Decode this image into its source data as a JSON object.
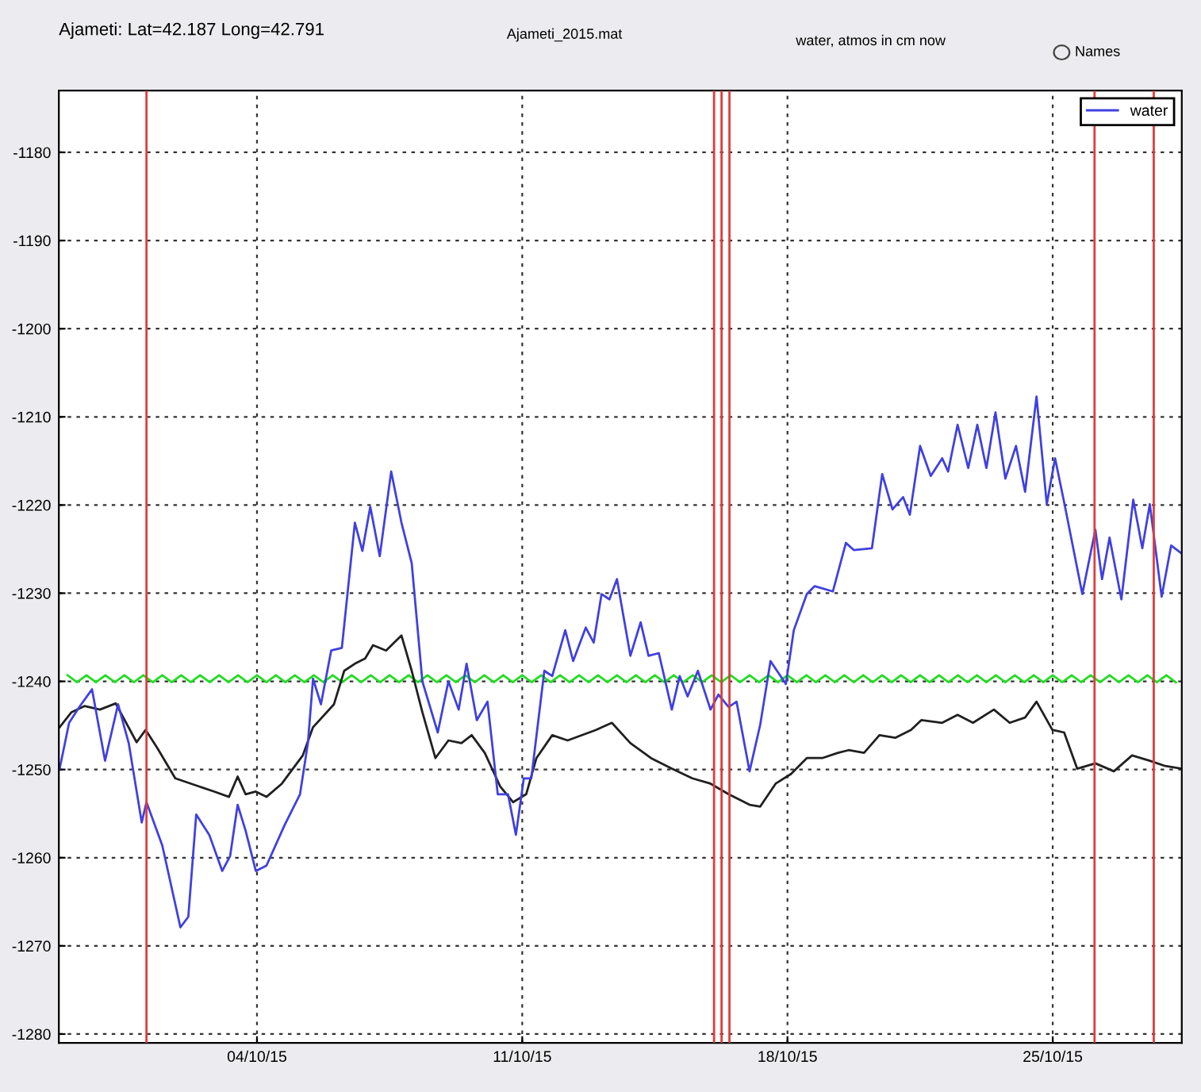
{
  "chart_data": {
    "type": "line",
    "title": "Ajameti: Lat=42.187 Long=42.791",
    "subtitle": "Ajameti_2015.mat",
    "annotations": [
      "water, atmos in cm now",
      "Names"
    ],
    "xlim": [
      "2015-09-28T18:30",
      "2015-10-28T09:45"
    ],
    "xticks": [
      {
        "value": "2015-10-04",
        "label": "04/10/15"
      },
      {
        "value": "2015-10-11",
        "label": "11/10/15"
      },
      {
        "value": "2015-10-18",
        "label": "18/10/15"
      },
      {
        "value": "2015-10-25",
        "label": "25/10/15"
      }
    ],
    "ylim": [
      -1281,
      -1173
    ],
    "yticks": [
      -1280,
      -1270,
      -1260,
      -1250,
      -1240,
      -1230,
      -1220,
      -1210,
      -1200,
      -1190,
      -1180
    ],
    "grid": true,
    "legend": "top right",
    "line_style": "solid",
    "marker": "none",
    "ref_lines": [
      {
        "axis": "x",
        "value": "2015-10-01T02:00",
        "label": null,
        "color": "#e03c3c"
      },
      {
        "axis": "x",
        "value": "2015-10-16T01:30",
        "label": null,
        "color": "#e03c3c"
      },
      {
        "axis": "x",
        "value": "2015-10-16T06:15",
        "label": null,
        "color": "#e03c3c"
      },
      {
        "axis": "x",
        "value": "2015-10-16T11:15",
        "label": null,
        "color": "#e03c3c"
      },
      {
        "axis": "x",
        "value": "2015-10-26T02:30",
        "label": null,
        "color": "#e03c3c"
      },
      {
        "axis": "x",
        "value": "2015-10-27T16:00",
        "label": null,
        "color": "#e03c3c"
      }
    ],
    "series": [
      {
        "color": "#22dd22",
        "x": [
          "2015-09-29T00:00",
          "2015-09-29T06:00",
          "2015-09-29T12:00",
          "2015-09-29T18:00",
          "2015-09-30T00:00",
          "2015-09-30T06:00",
          "2015-09-30T12:00",
          "2015-09-30T18:00",
          "2015-10-01T00:00",
          "2015-10-01T06:00",
          "2015-10-01T12:00",
          "2015-10-01T18:00",
          "2015-10-02T00:00",
          "2015-10-02T06:00",
          "2015-10-02T12:00",
          "2015-10-02T18:00",
          "2015-10-03T00:00",
          "2015-10-03T06:00",
          "2015-10-03T12:00",
          "2015-10-03T18:00",
          "2015-10-04T00:00",
          "2015-10-04T06:00",
          "2015-10-04T12:00",
          "2015-10-04T18:00",
          "2015-10-05T00:00",
          "2015-10-05T06:00",
          "2015-10-05T12:00",
          "2015-10-05T18:00",
          "2015-10-06T00:00",
          "2015-10-06T06:00",
          "2015-10-06T12:00",
          "2015-10-06T18:00",
          "2015-10-07T00:00",
          "2015-10-07T06:00",
          "2015-10-07T12:00",
          "2015-10-07T18:00",
          "2015-10-08T00:00",
          "2015-10-08T06:00",
          "2015-10-08T12:00",
          "2015-10-08T18:00",
          "2015-10-09T00:00",
          "2015-10-09T06:00",
          "2015-10-09T12:00",
          "2015-10-09T18:00",
          "2015-10-10T00:00",
          "2015-10-10T06:00",
          "2015-10-10T12:00",
          "2015-10-10T18:00",
          "2015-10-11T00:00",
          "2015-10-11T06:00",
          "2015-10-11T12:00",
          "2015-10-11T18:00",
          "2015-10-12T00:00",
          "2015-10-12T06:00",
          "2015-10-12T12:00",
          "2015-10-12T18:00",
          "2015-10-13T00:00",
          "2015-10-13T06:00",
          "2015-10-13T12:00",
          "2015-10-13T18:00",
          "2015-10-14T00:00",
          "2015-10-14T06:00",
          "2015-10-14T12:00",
          "2015-10-14T18:00",
          "2015-10-15T00:00",
          "2015-10-15T06:00",
          "2015-10-15T12:00",
          "2015-10-15T18:00",
          "2015-10-16T00:00",
          "2015-10-16T06:00",
          "2015-10-16T12:00",
          "2015-10-16T18:00",
          "2015-10-17T00:00",
          "2015-10-17T06:00",
          "2015-10-17T12:00",
          "2015-10-17T18:00",
          "2015-10-18T00:00",
          "2015-10-18T06:00",
          "2015-10-18T12:00",
          "2015-10-18T18:00",
          "2015-10-19T00:00",
          "2015-10-19T06:00",
          "2015-10-19T12:00",
          "2015-10-19T18:00",
          "2015-10-20T00:00",
          "2015-10-20T06:00",
          "2015-10-20T12:00",
          "2015-10-20T18:00",
          "2015-10-21T00:00",
          "2015-10-21T06:00",
          "2015-10-21T12:00",
          "2015-10-21T18:00",
          "2015-10-22T00:00",
          "2015-10-22T06:00",
          "2015-10-22T12:00",
          "2015-10-22T18:00",
          "2015-10-23T00:00",
          "2015-10-23T06:00",
          "2015-10-23T12:00",
          "2015-10-23T18:00",
          "2015-10-24T00:00",
          "2015-10-24T06:00",
          "2015-10-24T12:00",
          "2015-10-24T18:00",
          "2015-10-25T00:00",
          "2015-10-25T06:00",
          "2015-10-25T12:00",
          "2015-10-25T18:00",
          "2015-10-26T00:00",
          "2015-10-26T06:00",
          "2015-10-26T12:00",
          "2015-10-26T18:00",
          "2015-10-27T00:00",
          "2015-10-27T06:00",
          "2015-10-27T12:00",
          "2015-10-27T18:00",
          "2015-10-28T00:00",
          "2015-10-28T06:00"
        ],
        "values": [
          -1239.3,
          -1240.1,
          -1239.3,
          -1240.1,
          -1239.3,
          -1240.1,
          -1239.3,
          -1240.1,
          -1239.3,
          -1240.1,
          -1239.3,
          -1240.1,
          -1239.3,
          -1240.1,
          -1239.3,
          -1240.1,
          -1239.3,
          -1240.1,
          -1239.3,
          -1240.1,
          -1239.3,
          -1240.1,
          -1239.3,
          -1240.1,
          -1239.3,
          -1240.1,
          -1239.3,
          -1240.1,
          -1239.3,
          -1240.1,
          -1239.3,
          -1240.1,
          -1239.3,
          -1240.1,
          -1239.3,
          -1240.1,
          -1239.3,
          -1240.1,
          -1239.3,
          -1240.1,
          -1239.3,
          -1240.1,
          -1239.3,
          -1240.1,
          -1239.3,
          -1240.1,
          -1239.3,
          -1240.1,
          -1239.3,
          -1240.1,
          -1239.3,
          -1240.1,
          -1239.3,
          -1240.1,
          -1239.3,
          -1240.1,
          -1239.3,
          -1240.1,
          -1239.3,
          -1240.1,
          -1239.3,
          -1240.1,
          -1239.3,
          -1240.1,
          -1239.3,
          -1240.1,
          -1239.3,
          -1240.1,
          -1239.3,
          -1240.1,
          -1239.3,
          -1240.1,
          -1239.3,
          -1240.1,
          -1239.3,
          -1240.1,
          -1239.3,
          -1240.1,
          -1239.3,
          -1240.1,
          -1239.3,
          -1240.1,
          -1239.3,
          -1240.1,
          -1239.3,
          -1240.1,
          -1239.3,
          -1240.1,
          -1239.3,
          -1240.1,
          -1239.3,
          -1240.1,
          -1239.3,
          -1240.1,
          -1239.3,
          -1240.1,
          -1239.3,
          -1240.1,
          -1239.3,
          -1240.1,
          -1239.3,
          -1240.1,
          -1239.3,
          -1240.1,
          -1239.3,
          -1240.1,
          -1239.3,
          -1240.1,
          -1239.3,
          -1240.1,
          -1239.3,
          -1240.1,
          -1239.3,
          -1240.1,
          -1239.3,
          -1240.1,
          -1239.3,
          -1240.1
        ]
      },
      {
        "color": "#202020",
        "x": [
          "2015-09-28T19:00",
          "2015-09-29T02:30",
          "2015-09-29T10:45",
          "2015-09-29T20:30",
          "2015-09-30T06:30",
          "2015-09-30T19:45",
          "2015-10-01T01:30",
          "2015-10-01T09:00",
          "2015-10-01T20:15",
          "2015-10-02T11:00",
          "2015-10-02T21:00",
          "2015-10-03T06:15",
          "2015-10-03T11:45",
          "2015-10-03T16:45",
          "2015-10-03T23:15",
          "2015-10-04T06:00",
          "2015-10-04T15:45",
          "2015-10-05T05:00",
          "2015-10-05T11:30",
          "2015-10-06T00:45",
          "2015-10-06T07:15",
          "2015-10-06T14:00",
          "2015-10-06T20:30",
          "2015-10-07T01:30",
          "2015-10-07T09:45",
          "2015-10-07T19:30",
          "2015-10-08T02:00",
          "2015-10-08T08:45",
          "2015-10-08T17:00",
          "2015-10-09T01:15",
          "2015-10-09T09:30",
          "2015-10-09T16:00",
          "2015-10-10T00:15",
          "2015-10-10T10:00",
          "2015-10-10T18:15",
          "2015-10-11T02:30",
          "2015-10-11T09:00",
          "2015-10-11T19:00",
          "2015-10-12T04:45",
          "2015-10-12T22:45",
          "2015-10-13T08:45",
          "2015-10-13T20:30",
          "2015-10-14T09:30",
          "2015-10-14T22:45",
          "2015-10-15T11:45",
          "2015-10-15T23:15",
          "2015-10-16T10:45",
          "2015-10-17T00:00",
          "2015-10-17T06:45",
          "2015-10-17T16:30",
          "2015-10-18T02:15",
          "2015-10-18T12:15",
          "2015-10-18T22:00",
          "2015-10-19T08:00",
          "2015-10-19T14:45",
          "2015-10-20T00:30",
          "2015-10-20T10:15",
          "2015-10-20T20:15",
          "2015-10-21T06:15",
          "2015-10-21T12:45",
          "2015-10-22T02:00",
          "2015-10-22T11:45",
          "2015-10-22T21:30",
          "2015-10-23T10:45",
          "2015-10-23T20:45",
          "2015-10-24T06:30",
          "2015-10-24T13:45",
          "2015-10-24T23:45",
          "2015-10-25T07:15",
          "2015-10-25T15:30",
          "2015-10-26T03:00",
          "2015-10-26T14:45",
          "2015-10-27T02:15",
          "2015-10-27T13:30",
          "2015-10-27T23:15",
          "2015-10-28T09:45"
        ],
        "values": [
          -1245.2,
          -1243.5,
          -1242.8,
          -1243.2,
          -1242.5,
          -1246.9,
          -1245.5,
          -1247.6,
          -1251,
          -1251.9,
          -1252.5,
          -1253.1,
          -1250.8,
          -1252.8,
          -1252.5,
          -1253.1,
          -1251.6,
          -1248.4,
          -1245.2,
          -1242.6,
          -1238.8,
          -1238,
          -1237.4,
          -1235.9,
          -1236.5,
          -1234.8,
          -1238.8,
          -1243.5,
          -1248.7,
          -1246.7,
          -1247,
          -1246.1,
          -1248.1,
          -1251.9,
          -1253.7,
          -1252.8,
          -1248.7,
          -1246.1,
          -1246.7,
          -1245.5,
          -1244.7,
          -1247,
          -1248.7,
          -1249.9,
          -1251,
          -1251.6,
          -1252.8,
          -1254,
          -1254.2,
          -1251.6,
          -1250.5,
          -1248.7,
          -1248.7,
          -1248.1,
          -1247.8,
          -1248.1,
          -1246.1,
          -1246.4,
          -1245.5,
          -1244.4,
          -1244.7,
          -1243.8,
          -1244.7,
          -1243.2,
          -1244.7,
          -1244.1,
          -1242.3,
          -1245.5,
          -1245.8,
          -1249.9,
          -1249.3,
          -1250.2,
          -1248.4,
          -1249,
          -1249.6,
          -1249.9
        ]
      },
      {
        "name": "water",
        "color": "#4040e0",
        "x": [
          "2015-09-28T19:00",
          "2015-09-29T01:00",
          "2015-09-29T07:30",
          "2015-09-29T15:30",
          "2015-09-29T23:45",
          "2015-09-30T08:00",
          "2015-09-30T14:45",
          "2015-09-30T23:00",
          "2015-10-01T02:00",
          "2015-10-01T12:00",
          "2015-10-01T23:30",
          "2015-10-02T04:30",
          "2015-10-02T09:30",
          "2015-10-02T17:45",
          "2015-10-03T02:00",
          "2015-10-03T07:00",
          "2015-10-03T11:45",
          "2015-10-03T16:45",
          "2015-10-03T23:15",
          "2015-10-04T06:00",
          "2015-10-04T17:30",
          "2015-10-05T03:15",
          "2015-10-05T08:15",
          "2015-10-05T11:30",
          "2015-10-05T16:30",
          "2015-10-05T23:00",
          "2015-10-06T05:45",
          "2015-10-06T14:00",
          "2015-10-06T18:45",
          "2015-10-06T23:45",
          "2015-10-07T05:45",
          "2015-10-07T13:00",
          "2015-10-07T19:30",
          "2015-10-08T02:00",
          "2015-10-08T08:45",
          "2015-10-08T18:30",
          "2015-10-09T01:15",
          "2015-10-09T07:45",
          "2015-10-09T12:45",
          "2015-10-09T19:15",
          "2015-10-10T02:00",
          "2015-10-10T08:30",
          "2015-10-10T15:00",
          "2015-10-10T20:00",
          "2015-10-11T01:00",
          "2015-10-11T05:45",
          "2015-10-11T14:00",
          "2015-10-11T19:00",
          "2015-10-12T03:15",
          "2015-10-12T08:15",
          "2015-10-12T16:15",
          "2015-10-12T21:15",
          "2015-10-13T02:15",
          "2015-10-13T07:15",
          "2015-10-13T12:00",
          "2015-10-13T20:30",
          "2015-10-14T03:00",
          "2015-10-14T08:00",
          "2015-10-14T14:30",
          "2015-10-14T22:45",
          "2015-10-15T03:45",
          "2015-10-15T08:45",
          "2015-10-15T15:15",
          "2015-10-15T23:15",
          "2015-10-16T04:15",
          "2015-10-16T10:45",
          "2015-10-16T15:45",
          "2015-10-17T00:00",
          "2015-10-17T06:45",
          "2015-10-17T13:15",
          "2015-10-17T23:00",
          "2015-10-18T04:00",
          "2015-10-18T12:15",
          "2015-10-18T17:15",
          "2015-10-19T04:45",
          "2015-10-19T13:00",
          "2015-10-19T18:00",
          "2015-10-20T05:30",
          "2015-10-20T12:00",
          "2015-10-20T18:30",
          "2015-10-21T01:15",
          "2015-10-21T05:30",
          "2015-10-21T12:00",
          "2015-10-21T18:45",
          "2015-10-22T02:00",
          "2015-10-22T05:45",
          "2015-10-22T11:45",
          "2015-10-22T18:30",
          "2015-10-23T00:15",
          "2015-10-23T06:00",
          "2015-10-23T11:45",
          "2015-10-23T18:00",
          "2015-10-24T00:45",
          "2015-10-24T06:30",
          "2015-10-24T13:45",
          "2015-10-24T20:15",
          "2015-10-25T01:30",
          "2015-10-25T07:15",
          "2015-10-25T18:45",
          "2015-10-26T03:00",
          "2015-10-26T07:15",
          "2015-10-26T12:00",
          "2015-10-26T19:30",
          "2015-10-27T03:00",
          "2015-10-27T08:45",
          "2015-10-27T13:30",
          "2015-10-27T21:00",
          "2015-10-28T03:00",
          "2015-10-28T09:45"
        ],
        "values": [
          -1249.9,
          -1244.7,
          -1242.9,
          -1240.9,
          -1249,
          -1242.6,
          -1247,
          -1256,
          -1253.7,
          -1258.6,
          -1267.9,
          -1266.7,
          -1255.1,
          -1257.4,
          -1261.5,
          -1259.8,
          -1254,
          -1256.9,
          -1261.5,
          -1260.9,
          -1256.3,
          -1252.8,
          -1247,
          -1239.7,
          -1242.6,
          -1236.5,
          -1236.2,
          -1222,
          -1225.2,
          -1220.2,
          -1225.8,
          -1216.2,
          -1222,
          -1226.6,
          -1240,
          -1245.8,
          -1240,
          -1243.2,
          -1238,
          -1244.4,
          -1242.3,
          -1252.8,
          -1252.8,
          -1257.4,
          -1251,
          -1251,
          -1238.8,
          -1239.4,
          -1234.2,
          -1237.7,
          -1233.9,
          -1235.6,
          -1230.1,
          -1230.7,
          -1228.4,
          -1237.1,
          -1233.3,
          -1237.1,
          -1236.8,
          -1243.2,
          -1239.4,
          -1241.7,
          -1238.8,
          -1243.2,
          -1241.5,
          -1242.9,
          -1242.3,
          -1250.2,
          -1244.9,
          -1237.7,
          -1240.3,
          -1234.2,
          -1230.1,
          -1229.2,
          -1229.8,
          -1224.3,
          -1225.1,
          -1224.9,
          -1216.5,
          -1220.5,
          -1219.1,
          -1221.1,
          -1213.3,
          -1216.7,
          -1214.7,
          -1216.2,
          -1210.9,
          -1215.8,
          -1210.9,
          -1215.8,
          -1209.5,
          -1217,
          -1213.3,
          -1218.5,
          -1207.7,
          -1219.9,
          -1214.7,
          -1219.7,
          -1230.1,
          -1222.8,
          -1228.4,
          -1223.7,
          -1230.7,
          -1219.4,
          -1224.9,
          -1219.9,
          -1230.4,
          -1224.6,
          -1225.5
        ]
      }
    ]
  }
}
